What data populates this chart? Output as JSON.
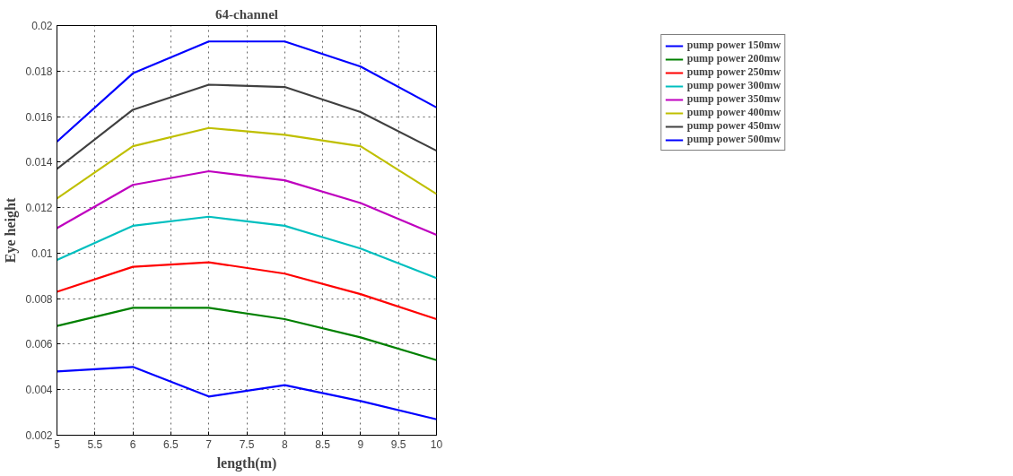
{
  "chart_data": {
    "type": "line",
    "title": "64-channel",
    "xlabel": "length(m)",
    "ylabel": "Eye height",
    "x": [
      5,
      6,
      7,
      8,
      9,
      10
    ],
    "series": [
      {
        "name": "pump power 150mw",
        "color": "#0000ff",
        "values": [
          0.0048,
          0.005,
          0.0037,
          0.0042,
          0.0035,
          0.0027
        ]
      },
      {
        "name": "pump power 200mw",
        "color": "#008000",
        "values": [
          0.0068,
          0.0076,
          0.0076,
          0.0071,
          0.0063,
          0.0053
        ]
      },
      {
        "name": "pump power 250mw",
        "color": "#ff0000",
        "values": [
          0.0083,
          0.0094,
          0.0096,
          0.0091,
          0.0082,
          0.0071
        ]
      },
      {
        "name": "pump power 300mw",
        "color": "#00bfbf",
        "values": [
          0.0097,
          0.0112,
          0.0116,
          0.0112,
          0.0102,
          0.0089
        ]
      },
      {
        "name": "pump power 350mw",
        "color": "#bf00bf",
        "values": [
          0.0111,
          0.013,
          0.0136,
          0.0132,
          0.0122,
          0.0108
        ]
      },
      {
        "name": "pump power 400mw",
        "color": "#bfbf00",
        "values": [
          0.0124,
          0.0147,
          0.0155,
          0.0152,
          0.0147,
          0.0126
        ]
      },
      {
        "name": "pump power 450mw",
        "color": "#404040",
        "values": [
          0.0137,
          0.0163,
          0.0174,
          0.0173,
          0.0162,
          0.0145
        ]
      },
      {
        "name": "pump power 500mw",
        "color": "#0000ff",
        "values": [
          0.0149,
          0.0179,
          0.0193,
          0.0193,
          0.0182,
          0.0164
        ]
      }
    ],
    "xlim": [
      5,
      10
    ],
    "ylim": [
      0.002,
      0.02
    ],
    "xticks": [
      5,
      5.5,
      6,
      6.5,
      7,
      7.5,
      8,
      8.5,
      9,
      9.5,
      10
    ],
    "yticks": [
      0.002,
      0.004,
      0.006,
      0.008,
      0.01,
      0.012,
      0.014,
      0.016,
      0.018,
      0.02
    ],
    "grid": true,
    "legend": "top right",
    "line_style": "solid",
    "marker": "none"
  }
}
